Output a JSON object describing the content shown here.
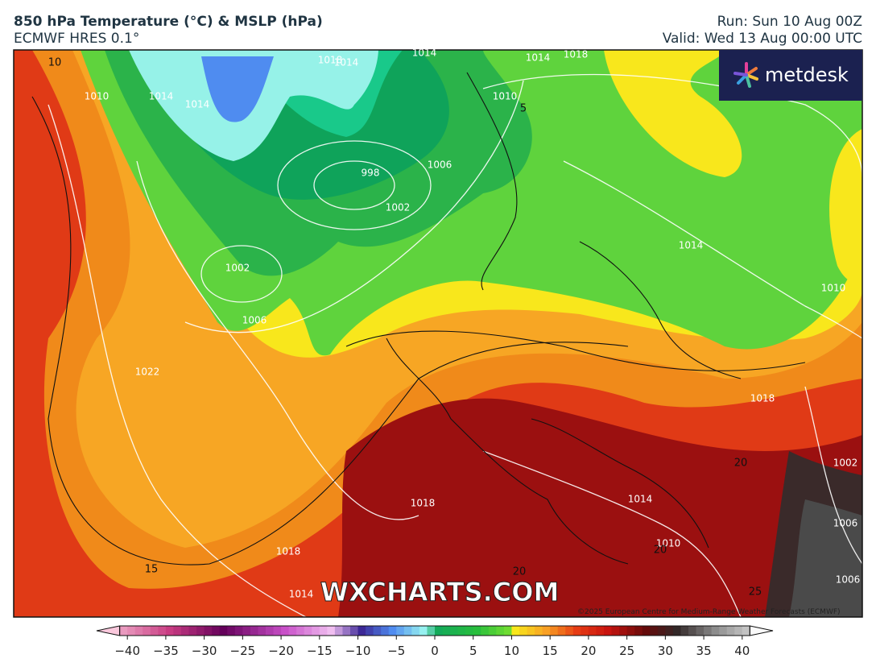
{
  "header": {
    "title": "850 hPa Temperature (°C) & MSLP (hPa)",
    "subtitle": "ECMWF HRES 0.1°",
    "run": "Run: Sun 10 Aug 00Z",
    "valid": "Valid: Wed 13 Aug 00:00 UTC"
  },
  "logo": "metdesk",
  "watermark": "WXCHARTS.COM",
  "copyright": "©2025 European Centre for Medium-Range Weather Forecasts (ECMWF)",
  "map": {
    "isobar_labels": [
      1010,
      1014,
      1014,
      1018,
      1014,
      1014,
      1014,
      1018,
      1010,
      1006,
      998,
      1002,
      1002,
      1006,
      1022,
      1014,
      1010,
      1018,
      1018,
      1014,
      1010,
      1018,
      1014,
      1002,
      1006,
      1006
    ],
    "isotherm_labels": [
      10,
      5,
      15,
      20,
      20,
      20,
      25
    ]
  },
  "colorbar": {
    "lim": [
      -44,
      44
    ],
    "ticks": [
      {
        "value": -40,
        "label": "−40"
      },
      {
        "value": -35,
        "label": "−35"
      },
      {
        "value": -30,
        "label": "−30"
      },
      {
        "value": -25,
        "label": "−25"
      },
      {
        "value": -20,
        "label": "−20"
      },
      {
        "value": -15,
        "label": "−15"
      },
      {
        "value": -10,
        "label": "−10"
      },
      {
        "value": -5,
        "label": "−5"
      },
      0,
      5,
      10,
      15,
      20,
      25,
      30,
      35,
      40
    ]
  }
}
